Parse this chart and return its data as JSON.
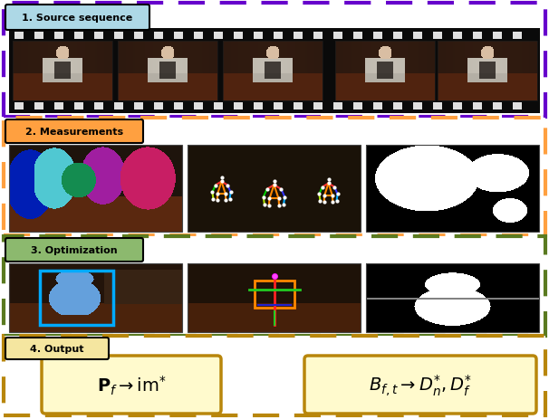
{
  "fig_width": 6.06,
  "fig_height": 4.64,
  "dpi": 100,
  "bg_color": "#ffffff",
  "section1_label": "1. Source sequence",
  "section1_label_bg": "#ADD8E6",
  "section1_border_color": "#6600CC",
  "section2_label": "2. Measurements",
  "section2_label_bg": "#FFA040",
  "section2_border_color": "#FFA040",
  "section3_label": "3. Optimization",
  "section3_label_bg": "#8CB96E",
  "section3_border_color": "#5A7A20",
  "section4_label": "4. Output",
  "section4_label_bg": "#F5E6A0",
  "section4_border_color": "#B8860B",
  "colors": {
    "purple_dark": "#6600CC",
    "orange": "#FFA040",
    "olive": "#5A7A20",
    "gold": "#B8860B",
    "light_yellow": "#FFFACD",
    "film_black": "#0A0A0A",
    "film_white": "#F0F0F0"
  }
}
